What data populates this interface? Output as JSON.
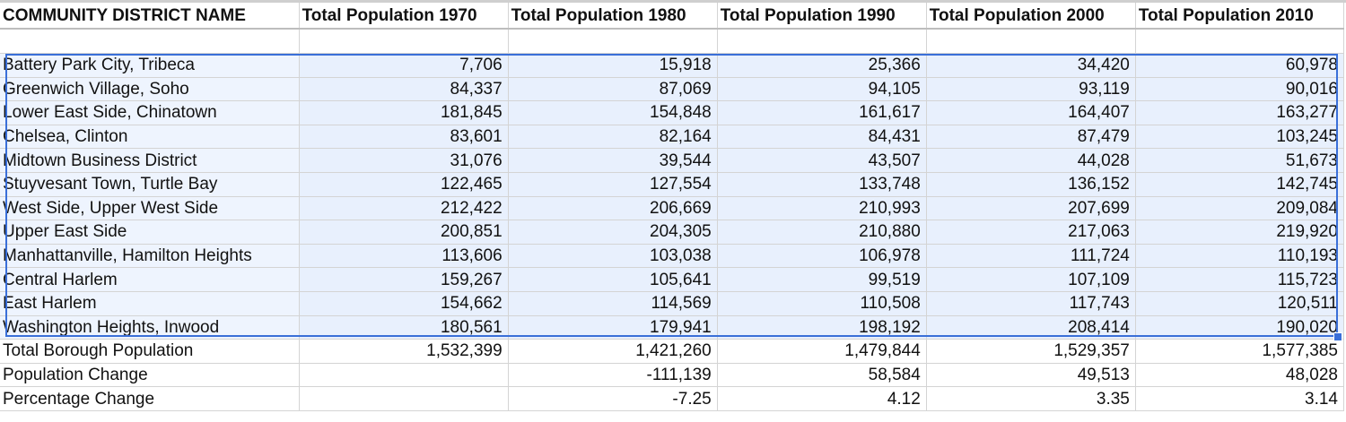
{
  "colors": {
    "selection_border": "#3a6fd8",
    "selection_fill": "#e8f0fd"
  },
  "columns": [
    "COMMUNITY DISTRICT NAME",
    "Total Population 1970",
    "Total Population 1980",
    "Total Population 1990",
    "Total Population 2000",
    "Total Population 2010"
  ],
  "rows": [
    {
      "name": "Battery Park City, Tribeca",
      "v": [
        "7,706",
        "15,918",
        "25,366",
        "34,420",
        "60,978"
      ]
    },
    {
      "name": "Greenwich Village, Soho",
      "v": [
        "84,337",
        "87,069",
        "94,105",
        "93,119",
        "90,016"
      ]
    },
    {
      "name": "Lower East Side, Chinatown",
      "v": [
        "181,845",
        "154,848",
        "161,617",
        "164,407",
        "163,277"
      ]
    },
    {
      "name": "Chelsea, Clinton",
      "v": [
        "83,601",
        "82,164",
        "84,431",
        "87,479",
        "103,245"
      ]
    },
    {
      "name": "Midtown Business District",
      "v": [
        "31,076",
        "39,544",
        "43,507",
        "44,028",
        "51,673"
      ]
    },
    {
      "name": "Stuyvesant Town, Turtle Bay",
      "v": [
        "122,465",
        "127,554",
        "133,748",
        "136,152",
        "142,745"
      ]
    },
    {
      "name": "West Side, Upper West Side",
      "v": [
        "212,422",
        "206,669",
        "210,993",
        "207,699",
        "209,084"
      ]
    },
    {
      "name": "Upper East Side",
      "v": [
        "200,851",
        "204,305",
        "210,880",
        "217,063",
        "219,920"
      ]
    },
    {
      "name": "Manhattanville, Hamilton Heights",
      "v": [
        "113,606",
        "103,038",
        "106,978",
        "111,724",
        "110,193"
      ]
    },
    {
      "name": "Central Harlem",
      "v": [
        "159,267",
        "105,641",
        "99,519",
        "107,109",
        "115,723"
      ]
    },
    {
      "name": "East Harlem",
      "v": [
        "154,662",
        "114,569",
        "110,508",
        "117,743",
        "120,511"
      ]
    },
    {
      "name": "Washington Heights, Inwood",
      "v": [
        "180,561",
        "179,941",
        "198,192",
        "208,414",
        "190,020"
      ]
    }
  ],
  "summary": [
    {
      "name": "Total Borough Population",
      "v": [
        "1,532,399",
        "1,421,260",
        "1,479,844",
        "1,529,357",
        "1,577,385"
      ]
    },
    {
      "name": "Population Change",
      "v": [
        "",
        "-111,139",
        "58,584",
        "49,513",
        "48,028"
      ]
    },
    {
      "name": "Percentage Change",
      "v": [
        "",
        "-7.25",
        "4.12",
        "3.35",
        "3.14"
      ]
    }
  ]
}
